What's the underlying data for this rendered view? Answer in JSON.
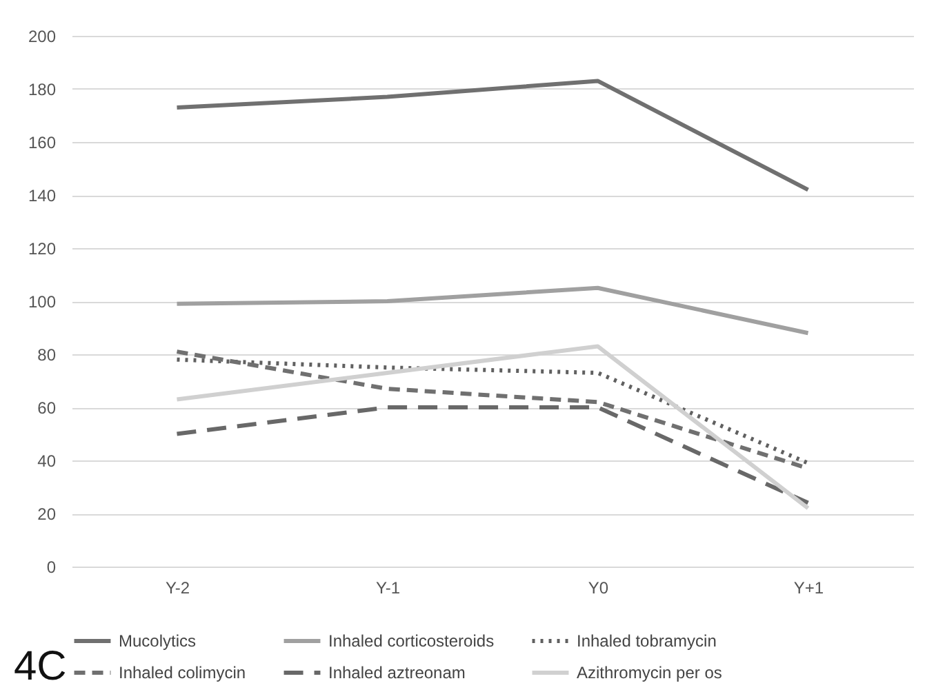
{
  "chart_data": {
    "type": "line",
    "categories": [
      "Y-2",
      "Y-1",
      "Y0",
      "Y+1"
    ],
    "series": [
      {
        "name": "Mucolytics",
        "color": "#707070",
        "line_style": "solid",
        "values": [
          173,
          177,
          183,
          142
        ]
      },
      {
        "name": "Inhaled corticosteroids",
        "color": "#a0a0a0",
        "line_style": "solid",
        "values": [
          99,
          100,
          105,
          88
        ]
      },
      {
        "name": "Inhaled tobramycin",
        "color": "#606060",
        "line_style": "dotted",
        "values": [
          78,
          75,
          73,
          39
        ]
      },
      {
        "name": "Inhaled colimycin",
        "color": "#707070",
        "line_style": "dashed",
        "values": [
          81,
          67,
          62,
          37
        ]
      },
      {
        "name": "Inhaled aztreonam",
        "color": "#686868",
        "line_style": "dashed",
        "values": [
          50,
          60,
          60,
          24
        ]
      },
      {
        "name": "Azithromycin per os",
        "color": "#d0d0d0",
        "line_style": "solid",
        "values": [
          63,
          73,
          83,
          22
        ]
      }
    ],
    "ylim": [
      0,
      200
    ],
    "yticks": [
      0,
      20,
      40,
      60,
      80,
      100,
      120,
      140,
      160,
      180,
      200
    ],
    "grid": "y",
    "legend": "bottom",
    "marker": "none",
    "annotations": [
      "4C"
    ]
  }
}
